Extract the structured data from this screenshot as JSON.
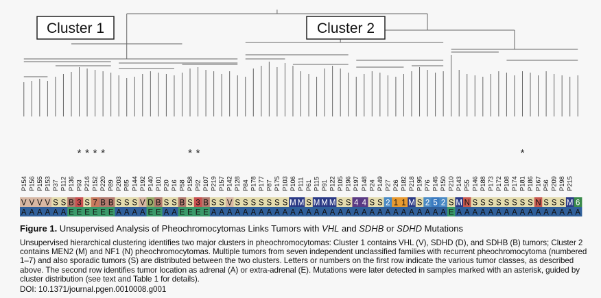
{
  "clusters": [
    {
      "label": "Cluster 1"
    },
    {
      "label": "Cluster 2"
    }
  ],
  "samples": [
    {
      "id": "P154",
      "cls": "V",
      "loc": "A",
      "ast": false
    },
    {
      "id": "P156",
      "cls": "V",
      "loc": "A",
      "ast": false
    },
    {
      "id": "P155",
      "cls": "V",
      "loc": "A",
      "ast": false
    },
    {
      "id": "P153",
      "cls": "V",
      "loc": "A",
      "ast": false
    },
    {
      "id": "P37",
      "cls": "S",
      "loc": "A",
      "ast": false
    },
    {
      "id": "P112",
      "cls": "S",
      "loc": "A",
      "ast": false
    },
    {
      "id": "P136",
      "cls": "B",
      "loc": "E",
      "ast": false
    },
    {
      "id": "P93",
      "cls": "3",
      "loc": "E",
      "ast": true
    },
    {
      "id": "P216",
      "cls": "S",
      "loc": "E",
      "ast": true
    },
    {
      "id": "P152",
      "cls": "7",
      "loc": "E",
      "ast": true
    },
    {
      "id": "P220",
      "cls": "B",
      "loc": "E",
      "ast": true
    },
    {
      "id": "P89",
      "cls": "B",
      "loc": "E",
      "ast": false
    },
    {
      "id": "P203",
      "cls": "S",
      "loc": "A",
      "ast": false
    },
    {
      "id": "P85",
      "cls": "S",
      "loc": "A",
      "ast": false
    },
    {
      "id": "P144",
      "cls": "S",
      "loc": "A",
      "ast": false
    },
    {
      "id": "P192",
      "cls": "V",
      "loc": "A",
      "ast": false
    },
    {
      "id": "P140",
      "cls": "D",
      "loc": "E",
      "ast": false
    },
    {
      "id": "P101",
      "cls": "B",
      "loc": "E",
      "ast": false
    },
    {
      "id": "P20",
      "cls": "S",
      "loc": "A",
      "ast": false
    },
    {
      "id": "P16",
      "cls": "S",
      "loc": "A",
      "ast": false
    },
    {
      "id": "P58",
      "cls": "B",
      "loc": "E",
      "ast": false
    },
    {
      "id": "P158",
      "cls": "S",
      "loc": "E",
      "ast": true
    },
    {
      "id": "P92",
      "cls": "3",
      "loc": "E",
      "ast": true
    },
    {
      "id": "P107",
      "cls": "B",
      "loc": "E",
      "ast": false
    },
    {
      "id": "P219",
      "cls": "S",
      "loc": "A",
      "ast": false
    },
    {
      "id": "P157",
      "cls": "S",
      "loc": "A",
      "ast": false
    },
    {
      "id": "P142",
      "cls": "V",
      "loc": "A",
      "ast": false
    },
    {
      "id": "P128",
      "cls": "S",
      "loc": "A",
      "ast": false
    },
    {
      "id": "P84",
      "cls": "S",
      "loc": "A",
      "ast": false
    },
    {
      "id": "P178",
      "cls": "S",
      "loc": "A",
      "ast": false
    },
    {
      "id": "P177",
      "cls": "S",
      "loc": "A",
      "ast": false
    },
    {
      "id": "P87",
      "cls": "S",
      "loc": "A",
      "ast": false
    },
    {
      "id": "P175",
      "cls": "S",
      "loc": "A",
      "ast": false
    },
    {
      "id": "P103",
      "cls": "S",
      "loc": "A",
      "ast": false
    },
    {
      "id": "P106",
      "cls": "M",
      "loc": "A",
      "ast": false
    },
    {
      "id": "P111",
      "cls": "M",
      "loc": "A",
      "ast": false
    },
    {
      "id": "P61",
      "cls": "S",
      "loc": "A",
      "ast": false
    },
    {
      "id": "P115",
      "cls": "M",
      "loc": "A",
      "ast": false
    },
    {
      "id": "P91",
      "cls": "M",
      "loc": "A",
      "ast": false
    },
    {
      "id": "P122",
      "cls": "M",
      "loc": "A",
      "ast": false
    },
    {
      "id": "P105",
      "cls": "S",
      "loc": "A",
      "ast": false
    },
    {
      "id": "P196",
      "cls": "S",
      "loc": "A",
      "ast": false
    },
    {
      "id": "P197",
      "cls": "4",
      "loc": "A",
      "ast": false
    },
    {
      "id": "P148",
      "cls": "4",
      "loc": "A",
      "ast": false
    },
    {
      "id": "P24",
      "cls": "S",
      "loc": "A",
      "ast": false
    },
    {
      "id": "P149",
      "cls": "S",
      "loc": "A",
      "ast": false
    },
    {
      "id": "P27",
      "cls": "2",
      "loc": "A",
      "ast": false
    },
    {
      "id": "P26",
      "cls": "1",
      "loc": "A",
      "ast": false
    },
    {
      "id": "P182",
      "cls": "1",
      "loc": "A",
      "ast": false
    },
    {
      "id": "P218",
      "cls": "M",
      "loc": "A",
      "ast": false
    },
    {
      "id": "P195",
      "cls": "S",
      "loc": "A",
      "ast": false
    },
    {
      "id": "P76",
      "cls": "2",
      "loc": "A",
      "ast": false
    },
    {
      "id": "P145",
      "cls": "5",
      "loc": "A",
      "ast": false
    },
    {
      "id": "P150",
      "cls": "2",
      "loc": "A",
      "ast": false
    },
    {
      "id": "P210",
      "cls": "S",
      "loc": "E",
      "ast": false
    },
    {
      "id": "P143",
      "cls": "M",
      "loc": "A",
      "ast": false
    },
    {
      "id": "P55",
      "cls": "N",
      "loc": "A",
      "ast": false
    },
    {
      "id": "P146",
      "cls": "S",
      "loc": "A",
      "ast": false
    },
    {
      "id": "P188",
      "cls": "S",
      "loc": "A",
      "ast": false
    },
    {
      "id": "P173",
      "cls": "S",
      "loc": "A",
      "ast": false
    },
    {
      "id": "P172",
      "cls": "S",
      "loc": "A",
      "ast": false
    },
    {
      "id": "P108",
      "cls": "S",
      "loc": "A",
      "ast": false
    },
    {
      "id": "P174",
      "cls": "S",
      "loc": "A",
      "ast": false
    },
    {
      "id": "P181",
      "cls": "S",
      "loc": "A",
      "ast": true
    },
    {
      "id": "P186",
      "cls": "S",
      "loc": "A",
      "ast": false
    },
    {
      "id": "P167",
      "cls": "N",
      "loc": "A",
      "ast": false
    },
    {
      "id": "P56",
      "cls": "S",
      "loc": "A",
      "ast": false
    },
    {
      "id": "P209",
      "cls": "S",
      "loc": "A",
      "ast": false
    },
    {
      "id": "P198",
      "cls": "S",
      "loc": "A",
      "ast": false
    },
    {
      "id": "P215",
      "cls": "M",
      "loc": "A",
      "ast": false
    },
    {
      "id": "",
      "cls": "6",
      "loc": "A",
      "ast": false
    }
  ],
  "colors": {
    "V": "#d7b7a3",
    "S": "#e4dcae",
    "B": "#b27a6e",
    "3": "#c85050",
    "7": "#c87a5e",
    "D": "#9aaa6a",
    "M": "#2b3a86",
    "4": "#5a3a84",
    "2": "#4a8ac4",
    "1": "#e89a30",
    "5": "#3a7ac0",
    "6": "#3a8a4a",
    "N": "#c85a50",
    "locA": "#2f5f9a",
    "locE": "#3a9a6a",
    "darkText": "#111111",
    "lightText": "#ffffff",
    "line": "#666666",
    "star": "#222222"
  },
  "caption": {
    "title_bold": "Figure 1.",
    "title_rest_1": " Unsupervised Analysis of Pheochromocytomas Links Tumors with ",
    "title_vhl": "VHL",
    "title_rest_2": " and ",
    "title_sdhb": "SDHB",
    "title_rest_3": " or ",
    "title_sdhd": "SDHD",
    "title_rest_4": " Mutations",
    "body": "Unsupervised hierarchical clustering identifies two major clusters in pheochromocytomas: Cluster 1 contains VHL (V), SDHD (D), and SDHB (B) tumors; Cluster 2 contains MEN2 (M) and NF1 (N) pheochromocytomas. Multiple tumors from seven independent unclassified families with recurrent pheochromocytoma (numbered 1–7) and also sporadic tumors (S) are distributed between the two clusters. Letters or numbers on the first row indicate the various tumor classes, as described above. The second row identifies tumor location as adrenal (A) or extra-adrenal (E). Mutations were later detected in samples marked with an asterisk, guided by cluster distribution (see text and Table 1 for details).",
    "doi": "DOI: 10.1371/journal.pgen.0010008.g001"
  }
}
